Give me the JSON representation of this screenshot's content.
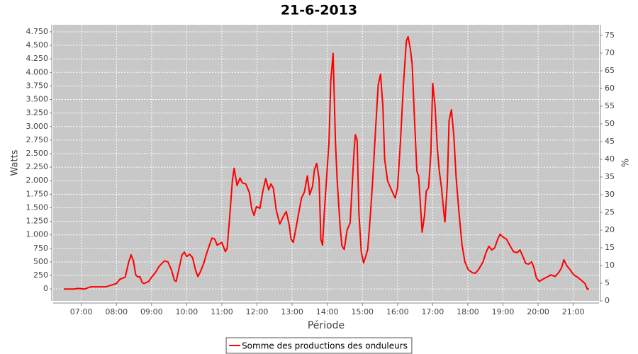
{
  "chart_data": {
    "type": "line",
    "title": "21-6-2013",
    "xlabel": "Période",
    "ylabel": "Watts",
    "y2label": "%",
    "x": [
      "06:30",
      "06:48",
      "06:54",
      "07:06",
      "07:16",
      "07:42",
      "07:48",
      "08:00",
      "08:06",
      "08:15",
      "08:21",
      "08:25",
      "08:29",
      "08:33",
      "08:37",
      "08:40",
      "08:44",
      "08:47",
      "08:55",
      "09:01",
      "09:07",
      "09:13",
      "09:22",
      "09:28",
      "09:34",
      "09:39",
      "09:42",
      "09:47",
      "09:52",
      "09:56",
      "10:00",
      "10:05",
      "10:10",
      "10:15",
      "10:19",
      "10:23",
      "10:29",
      "10:35",
      "10:43",
      "10:48",
      "10:52",
      "11:00",
      "11:06",
      "11:09",
      "11:13",
      "11:18",
      "11:21",
      "11:26",
      "11:31",
      "11:35",
      "11:41",
      "11:47",
      "11:51",
      "11:55",
      "11:59",
      "12:05",
      "12:10",
      "12:15",
      "12:20",
      "12:24",
      "12:28",
      "12:33",
      "12:39",
      "12:45",
      "12:50",
      "12:55",
      "12:58",
      "13:02",
      "13:07",
      "13:12",
      "13:16",
      "13:21",
      "13:26",
      "13:30",
      "13:35",
      "13:38",
      "13:42",
      "13:46",
      "13:49",
      "13:52",
      "13:55",
      "13:59",
      "14:03",
      "14:06",
      "14:10",
      "14:14",
      "14:17",
      "14:22",
      "14:25",
      "14:29",
      "14:34",
      "14:39",
      "14:42",
      "14:46",
      "14:48",
      "14:51",
      "14:54",
      "14:58",
      "15:02",
      "15:05",
      "15:09",
      "15:13",
      "15:17",
      "15:22",
      "15:27",
      "15:31",
      "15:35",
      "15:38",
      "15:43",
      "15:48",
      "15:53",
      "15:56",
      "16:00",
      "16:05",
      "16:10",
      "16:15",
      "16:18",
      "16:22",
      "16:25",
      "16:29",
      "16:33",
      "16:36",
      "16:40",
      "16:42",
      "16:46",
      "16:49",
      "16:53",
      "16:57",
      "17:00",
      "17:04",
      "17:08",
      "17:11",
      "17:15",
      "17:19",
      "17:21",
      "17:25",
      "17:28",
      "17:32",
      "17:36",
      "17:40",
      "17:45",
      "17:50",
      "17:55",
      "18:01",
      "18:08",
      "18:13",
      "18:19",
      "18:26",
      "18:31",
      "18:36",
      "18:41",
      "18:46",
      "18:51",
      "18:55",
      "19:00",
      "19:06",
      "19:12",
      "19:18",
      "19:24",
      "19:29",
      "19:34",
      "19:39",
      "19:44",
      "19:49",
      "19:53",
      "19:57",
      "20:02",
      "20:08",
      "20:15",
      "20:22",
      "20:29",
      "20:35",
      "20:40",
      "20:44",
      "20:49",
      "20:55",
      "21:01",
      "21:07",
      "21:13",
      "21:20",
      "21:24",
      "21:27"
    ],
    "series": [
      {
        "name": "Somme des productions des onduleurs",
        "color": "#ff0000",
        "values": [
          0,
          0,
          10,
          0,
          40,
          40,
          60,
          100,
          180,
          220,
          500,
          630,
          520,
          260,
          220,
          230,
          120,
          100,
          140,
          230,
          310,
          420,
          520,
          500,
          350,
          160,
          140,
          380,
          630,
          680,
          600,
          640,
          580,
          350,
          230,
          310,
          470,
          690,
          940,
          920,
          810,
          860,
          690,
          750,
          1280,
          2000,
          2230,
          1910,
          2050,
          1960,
          1940,
          1780,
          1480,
          1360,
          1520,
          1490,
          1810,
          2040,
          1830,
          1940,
          1860,
          1450,
          1200,
          1340,
          1430,
          1180,
          930,
          860,
          1150,
          1450,
          1680,
          1790,
          2090,
          1740,
          1900,
          2200,
          2320,
          2040,
          920,
          810,
          1410,
          2070,
          2720,
          3840,
          4350,
          2720,
          1990,
          1150,
          800,
          730,
          1090,
          1220,
          1810,
          2590,
          2850,
          2750,
          1410,
          690,
          480,
          580,
          730,
          1280,
          1910,
          2850,
          3770,
          3970,
          3380,
          2400,
          2000,
          1870,
          1750,
          1680,
          1870,
          2720,
          3770,
          4580,
          4660,
          4420,
          4160,
          3110,
          2170,
          2090,
          1410,
          1050,
          1350,
          1810,
          1870,
          2530,
          3800,
          3380,
          2590,
          2200,
          1870,
          1410,
          1240,
          1940,
          3110,
          3310,
          2850,
          2070,
          1410,
          820,
          500,
          350,
          300,
          290,
          370,
          500,
          670,
          790,
          720,
          760,
          920,
          1010,
          960,
          920,
          800,
          690,
          670,
          720,
          600,
          470,
          460,
          500,
          390,
          210,
          140,
          180,
          220,
          260,
          230,
          300,
          390,
          540,
          430,
          350,
          260,
          220,
          170,
          100,
          0,
          0
        ]
      }
    ],
    "xlim": [
      "06:12",
      "21:44"
    ],
    "xticks": [
      "07:00",
      "08:00",
      "09:00",
      "10:00",
      "11:00",
      "12:00",
      "13:00",
      "14:00",
      "15:00",
      "16:00",
      "17:00",
      "18:00",
      "19:00",
      "20:00",
      "21:00"
    ],
    "ylim": [
      -220,
      4880
    ],
    "yticks": [
      0,
      250,
      500,
      750,
      {
        "value": 1000,
        "label": "1.000"
      },
      {
        "value": 1250,
        "label": "1.250"
      },
      {
        "value": 1500,
        "label": "1.500"
      },
      {
        "value": 1750,
        "label": "1.750"
      },
      {
        "value": 2000,
        "label": "2.000"
      },
      {
        "value": 2250,
        "label": "2.250"
      },
      {
        "value": 2500,
        "label": "2.500"
      },
      {
        "value": 2750,
        "label": "2.750"
      },
      {
        "value": 3000,
        "label": "3.000"
      },
      {
        "value": 3250,
        "label": "3.250"
      },
      {
        "value": 3500,
        "label": "3.500"
      },
      {
        "value": 3750,
        "label": "3.750"
      },
      {
        "value": 4000,
        "label": "4.000"
      },
      {
        "value": 4250,
        "label": "4.250"
      },
      {
        "value": 4500,
        "label": "4.500"
      },
      {
        "value": 4750,
        "label": "4.750"
      }
    ],
    "y2lim": [
      0,
      78
    ],
    "y2ticks": [
      0,
      5,
      10,
      15,
      20,
      25,
      30,
      35,
      40,
      45,
      50,
      55,
      60,
      65,
      70,
      75
    ],
    "grid": true
  }
}
